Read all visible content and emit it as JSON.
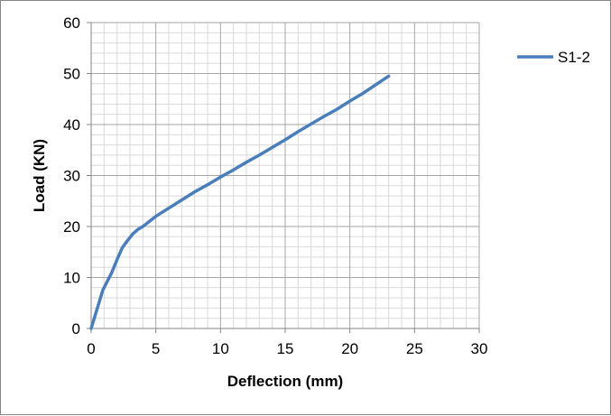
{
  "chart_data": {
    "type": "scatter",
    "title": "",
    "xlabel": "Deflection (mm)",
    "ylabel": "Load (KN)",
    "xlim": [
      0,
      30
    ],
    "ylim": [
      0,
      60
    ],
    "x_major_step": 5,
    "y_major_step": 10,
    "x_minor_step": 1,
    "y_minor_step": 2,
    "grid": true,
    "legend_position": "right",
    "line_color": "#4a7ebb",
    "series": [
      {
        "name": "S1-2",
        "x": [
          0,
          0.3,
          0.6,
          0.9,
          1.2,
          1.6,
          2.0,
          2.4,
          2.8,
          3.2,
          3.6,
          4.0,
          4.5,
          5.0,
          6.0,
          7.0,
          8.0,
          9.0,
          10.0,
          11.0,
          12.0,
          13.0,
          14.0,
          15.0,
          16.0,
          17.0,
          18.0,
          19.0,
          20.0,
          21.0,
          22.0,
          23.0
        ],
        "y": [
          0,
          2.5,
          5.0,
          7.5,
          9.0,
          11.0,
          13.5,
          15.8,
          17.2,
          18.5,
          19.4,
          20.0,
          21.0,
          22.0,
          23.6,
          25.2,
          26.8,
          28.2,
          29.7,
          31.1,
          32.6,
          34.0,
          35.5,
          37.0,
          38.6,
          40.1,
          41.6,
          43.0,
          44.6,
          46.1,
          47.8,
          49.5
        ]
      }
    ]
  }
}
